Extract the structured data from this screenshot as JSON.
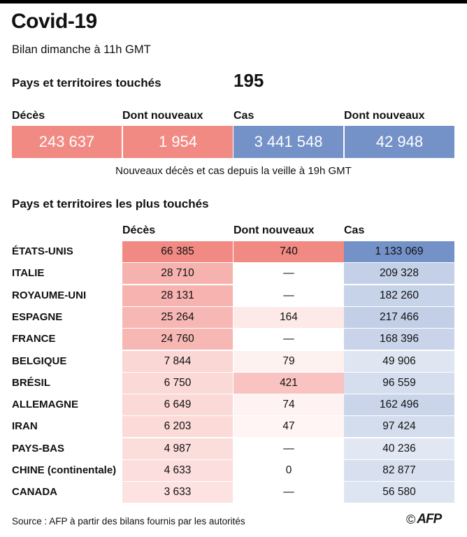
{
  "title": "Covid-19",
  "subtitle": "Bilan dimanche à 11h GMT",
  "countries": {
    "label": "Pays et territoires touchés",
    "value": "195"
  },
  "summary": {
    "items": [
      {
        "label": "Décès",
        "value": "243 637",
        "color": "#f28a84"
      },
      {
        "label": "Dont nouveaux",
        "value": "1 954",
        "color": "#f28a84"
      },
      {
        "label": "Cas",
        "value": "3 441 548",
        "color": "#7491c8"
      },
      {
        "label": "Dont nouveaux",
        "value": "42 948",
        "color": "#7491c8"
      }
    ],
    "note": "Nouveaux décès et cas depuis la veille à 19h GMT"
  },
  "table_title": "Pays et territoires les plus touchés",
  "columns": [
    "Décès",
    "Dont nouveaux",
    "Cas"
  ],
  "colors": {
    "deaths": "#f28a84",
    "cases": "#7491c8",
    "bar": "#000000"
  },
  "chart_data": {
    "type": "table",
    "title": "Pays et territoires les plus touchés",
    "columns": [
      "Décès",
      "Dont nouveaux",
      "Cas"
    ],
    "rows": [
      {
        "country": "ÉTATS-UNIS",
        "deaths": 66385,
        "deaths_text": "66 385",
        "new": 740,
        "new_text": "740",
        "cases": 1133069,
        "cases_text": "1 133 069"
      },
      {
        "country": "ITALIE",
        "deaths": 28710,
        "deaths_text": "28 710",
        "new": null,
        "new_text": "—",
        "cases": 209328,
        "cases_text": "209 328"
      },
      {
        "country": "ROYAUME-UNI",
        "deaths": 28131,
        "deaths_text": "28 131",
        "new": null,
        "new_text": "—",
        "cases": 182260,
        "cases_text": "182 260"
      },
      {
        "country": "ESPAGNE",
        "deaths": 25264,
        "deaths_text": "25 264",
        "new": 164,
        "new_text": "164",
        "cases": 217466,
        "cases_text": "217 466"
      },
      {
        "country": "FRANCE",
        "deaths": 24760,
        "deaths_text": "24 760",
        "new": null,
        "new_text": "—",
        "cases": 168396,
        "cases_text": "168 396"
      },
      {
        "country": "BELGIQUE",
        "deaths": 7844,
        "deaths_text": "7 844",
        "new": 79,
        "new_text": "79",
        "cases": 49906,
        "cases_text": "49 906"
      },
      {
        "country": "BRÉSIL",
        "deaths": 6750,
        "deaths_text": "6 750",
        "new": 421,
        "new_text": "421",
        "cases": 96559,
        "cases_text": "96 559"
      },
      {
        "country": "ALLEMAGNE",
        "deaths": 6649,
        "deaths_text": "6 649",
        "new": 74,
        "new_text": "74",
        "cases": 162496,
        "cases_text": "162 496"
      },
      {
        "country": "IRAN",
        "deaths": 6203,
        "deaths_text": "6 203",
        "new": 47,
        "new_text": "47",
        "cases": 97424,
        "cases_text": "97 424"
      },
      {
        "country": "PAYS-BAS",
        "deaths": 4987,
        "deaths_text": "4 987",
        "new": null,
        "new_text": "—",
        "cases": 40236,
        "cases_text": "40 236"
      },
      {
        "country": "CHINE (continentale)",
        "deaths": 4633,
        "deaths_text": "4 633",
        "new": 0,
        "new_text": "0",
        "cases": 82877,
        "cases_text": "82 877"
      },
      {
        "country": "CANADA",
        "deaths": 3633,
        "deaths_text": "3 633",
        "new": null,
        "new_text": "—",
        "cases": 56580,
        "cases_text": "56 580"
      }
    ]
  },
  "source": "Source : AFP à partir des bilans fournis par les autorités",
  "credit": {
    "copyright": "©",
    "logo": "AFP"
  }
}
